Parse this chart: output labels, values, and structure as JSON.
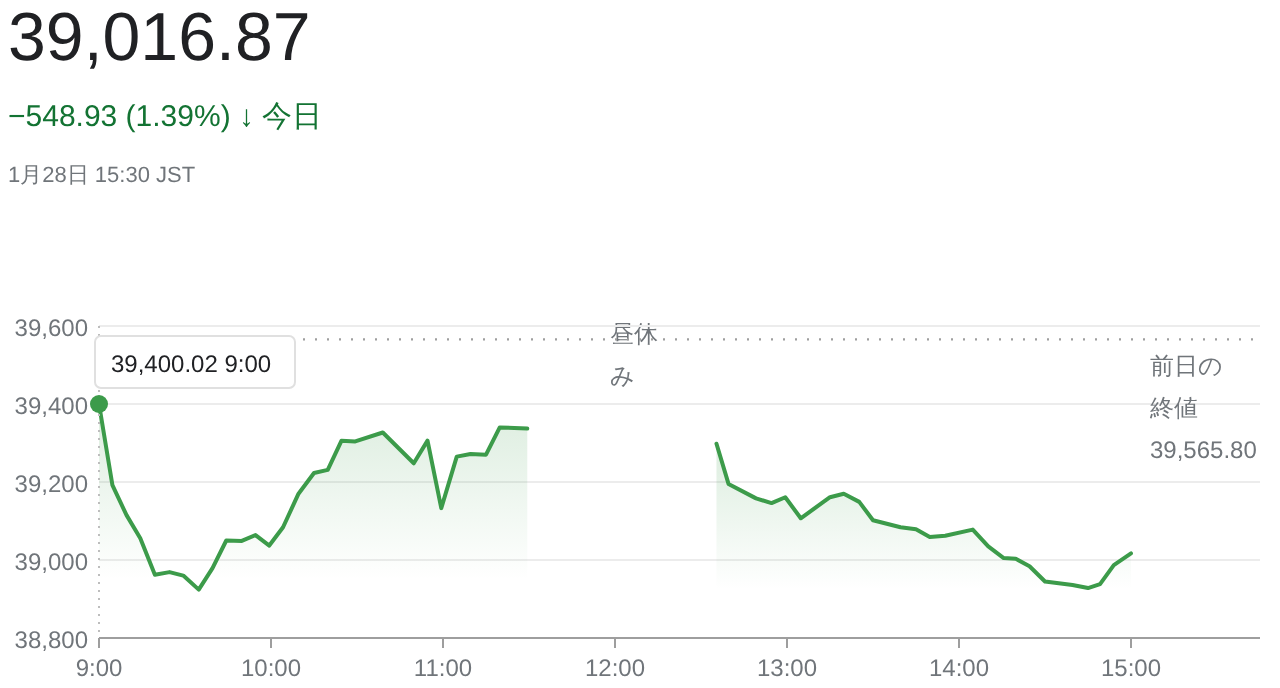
{
  "chart_data": {
    "type": "area",
    "title": "39,016.87",
    "subtitle": "−548.93 (1.39%) ↓ 今日",
    "annotations": [
      "1月28日 15:30 JST",
      "昼休み",
      {
        "text": "39,400.02  9:00",
        "x": 9,
        "y": 39400
      }
    ],
    "series": [
      {
        "color": "#3c9b4a",
        "x": [
          9,
          9.078,
          9.16,
          9.24,
          9.325,
          9.41,
          9.49,
          9.58,
          9.66,
          9.74,
          9.83,
          9.91,
          9.99,
          10.07,
          10.16,
          10.25,
          10.33,
          10.41,
          10.49,
          10.65,
          10.83,
          10.91,
          10.99,
          11.08,
          11.16,
          11.25,
          11.33,
          11.49
        ],
        "values": [
          39400,
          39192,
          39115,
          39056,
          38962,
          38969,
          38960,
          38924,
          38979,
          39050,
          39049,
          39064,
          39037,
          39084,
          39170,
          39223,
          39231,
          39306,
          39304,
          39327,
          39248,
          39306,
          39133,
          39265,
          39272,
          39270,
          39340,
          39337
        ]
      },
      {
        "color": "#3c9b4a",
        "x": [
          12.59,
          12.66,
          12.82,
          12.91,
          12.99,
          13.08,
          13.25,
          13.33,
          13.42,
          13.5,
          13.66,
          13.75,
          13.83,
          13.92,
          14.08,
          14.17,
          14.26,
          14.33,
          14.41,
          14.5,
          14.66,
          14.75,
          14.82,
          14.9,
          15.0
        ],
        "values": [
          39298,
          39195,
          39158,
          39146,
          39161,
          39107,
          39161,
          39170,
          39149,
          39102,
          39084,
          39079,
          39059,
          39062,
          39078,
          39035,
          39005,
          39003,
          38984,
          38945,
          38936,
          38928,
          38938,
          38987,
          39017
        ]
      }
    ],
    "xlim": [
      9,
      15.75
    ],
    "xticks": [
      {
        "value": 9,
        "label": "9:00"
      },
      {
        "value": 10,
        "label": "10:00"
      },
      {
        "value": 11,
        "label": "11:00"
      },
      {
        "value": 12,
        "label": "12:00"
      },
      {
        "value": 13,
        "label": "13:00"
      },
      {
        "value": 14,
        "label": "14:00"
      },
      {
        "value": 15,
        "label": "15:00"
      }
    ],
    "ylim": [
      38800,
      39600
    ],
    "yticks": [
      {
        "value": 38800,
        "label": "38,800"
      },
      {
        "value": 39000,
        "label": "39,000"
      },
      {
        "value": 39200,
        "label": "39,200"
      },
      {
        "value": 39400,
        "label": "39,400"
      },
      {
        "value": 39600,
        "label": "39,600"
      }
    ],
    "ref_lines": [
      {
        "axis": "y",
        "value": 39565.8,
        "label": "前日の終値39,565.80",
        "line_style": "dotted",
        "color": "#9e9e9e"
      }
    ],
    "grid": "y",
    "marker": "none",
    "line_style": "solid"
  }
}
